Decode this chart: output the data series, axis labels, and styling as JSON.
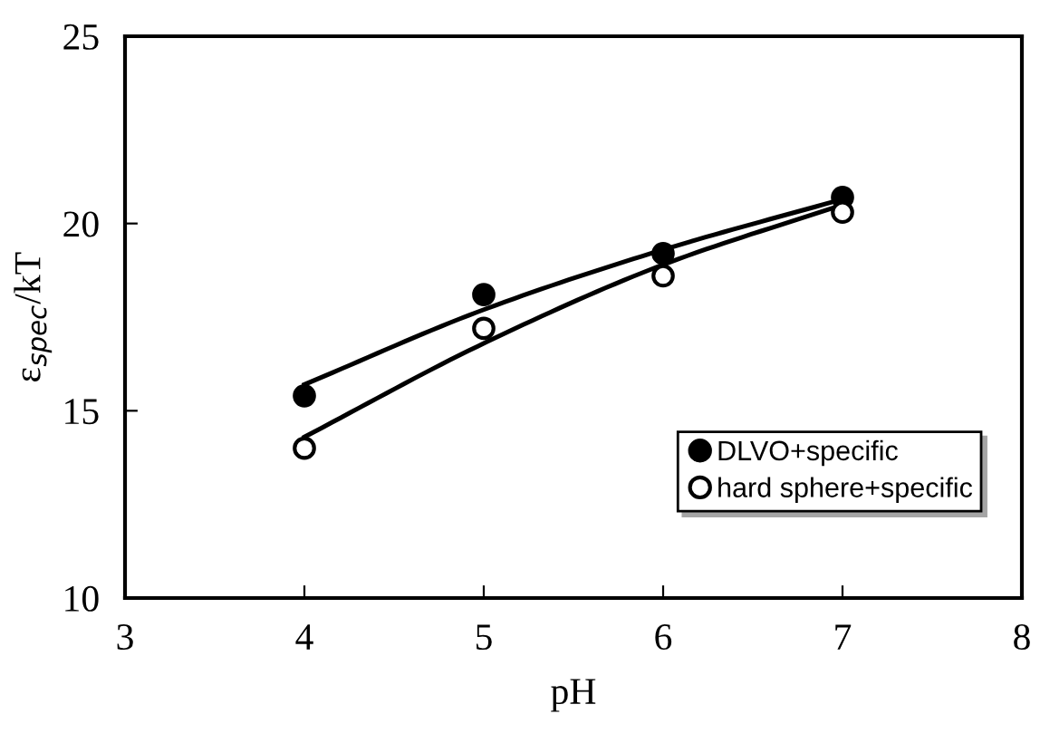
{
  "chart_data": {
    "type": "scatter",
    "xlabel": "pH",
    "ylabel": "ε$_{spec}$/kT",
    "xlim": [
      3,
      8
    ],
    "ylim": [
      10,
      25
    ],
    "xticks": [
      3,
      4,
      5,
      6,
      7,
      8
    ],
    "yticks": [
      10,
      15,
      20,
      25
    ],
    "grid": false,
    "legend": "bottom right",
    "series": [
      {
        "name": "DLVO+specific",
        "marker": "circle",
        "color": "#000000",
        "x": [
          4,
          5,
          6,
          7
        ],
        "values": [
          15.4,
          18.1,
          19.2,
          20.7
        ]
      },
      {
        "name": "hard sphere+specific",
        "marker": "circle",
        "color": "#ffffff",
        "x": [
          4,
          5,
          6,
          7
        ],
        "values": [
          14.0,
          17.2,
          18.6,
          20.3
        ]
      },
      {
        "type": "line",
        "color": "#000000",
        "x": [
          4,
          5,
          6,
          7
        ],
        "values": [
          15.7,
          17.7,
          19.3,
          20.65
        ]
      },
      {
        "type": "line",
        "color": "#000000",
        "x": [
          4,
          5,
          6,
          7
        ],
        "values": [
          14.3,
          16.8,
          18.9,
          20.5
        ]
      }
    ]
  }
}
